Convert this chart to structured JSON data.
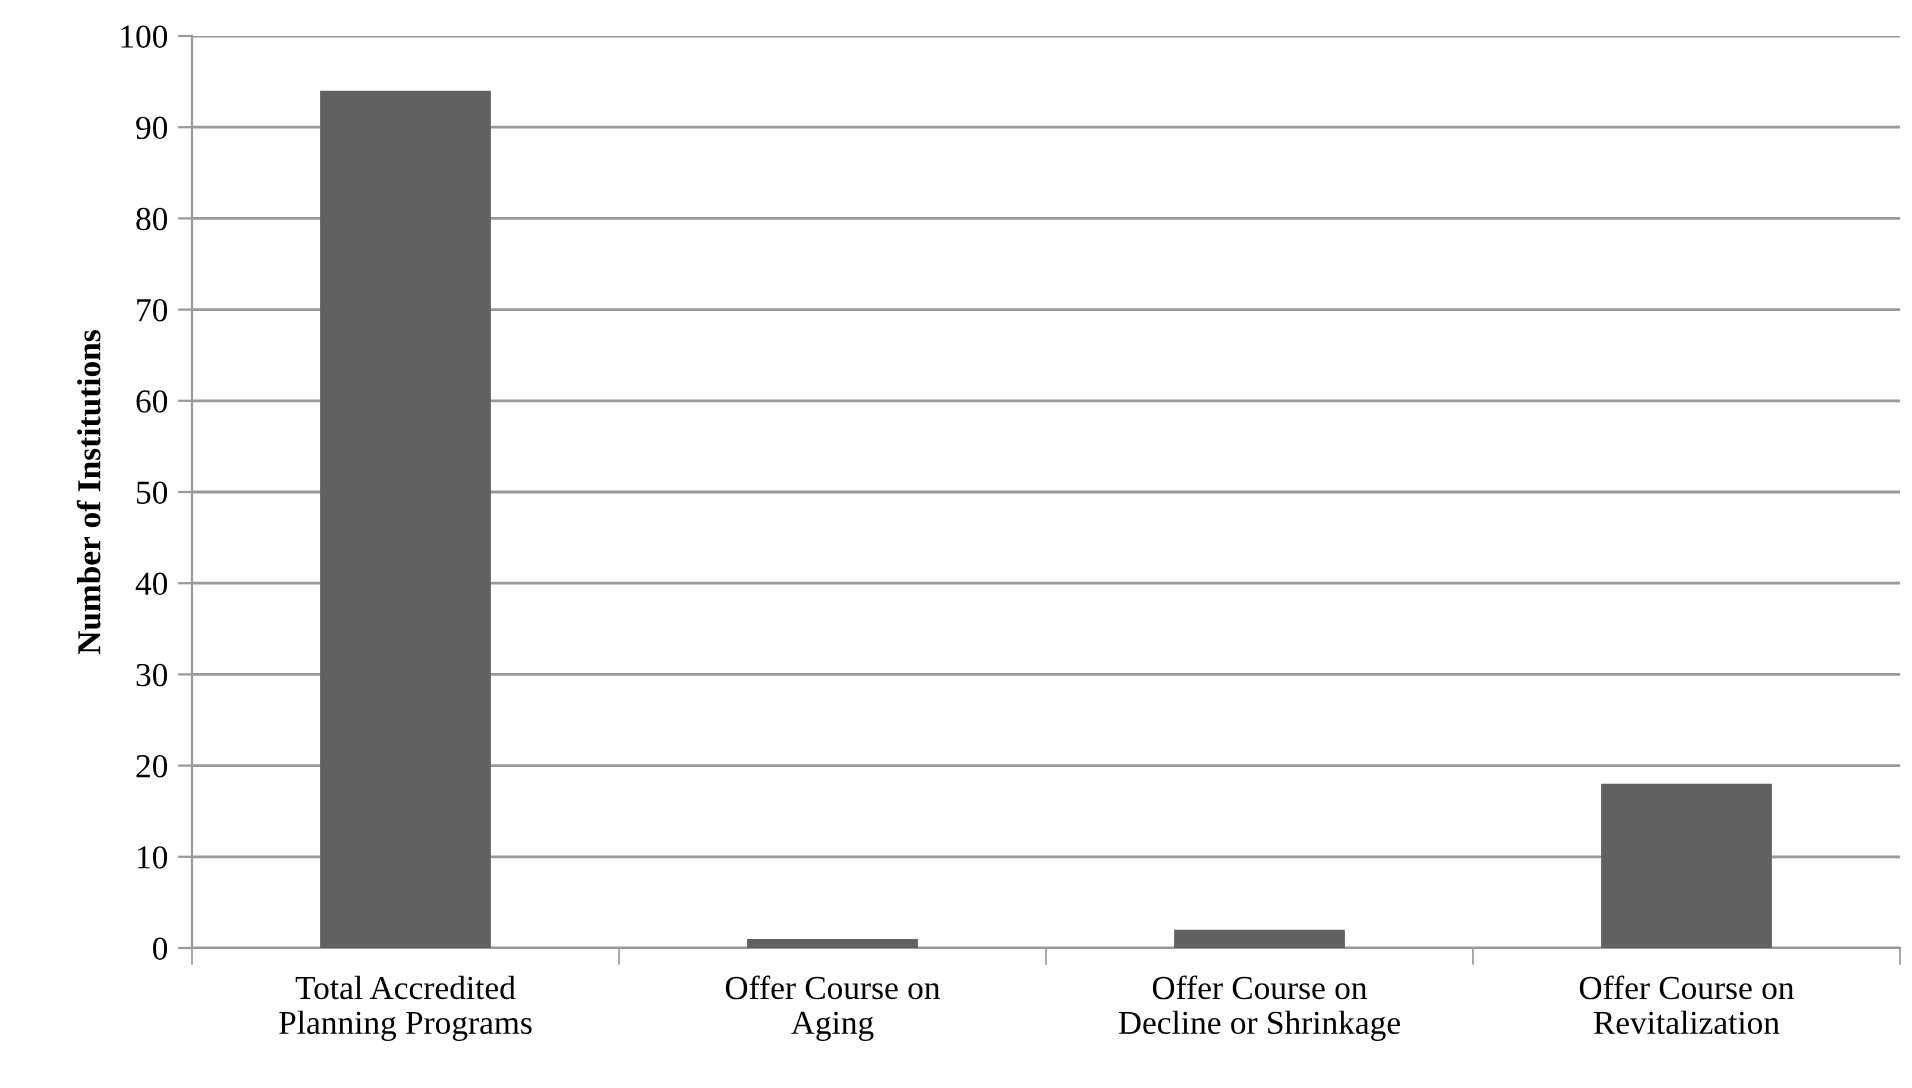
{
  "chart_data": {
    "type": "bar",
    "ylabel": "Number of Institutions",
    "categories": [
      "Total Accredited\nPlanning Programs",
      "Offer Course on\nAging",
      "Offer Course on\nDecline or Shrinkage",
      "Offer Course on\nRevitalization"
    ],
    "values": [
      94,
      1,
      2,
      18
    ],
    "color": "#616161",
    "ylim": [
      0,
      100
    ],
    "yticks": [
      0,
      10,
      20,
      30,
      40,
      50,
      60,
      70,
      80,
      90,
      100
    ],
    "grid": "y",
    "legend": false
  }
}
